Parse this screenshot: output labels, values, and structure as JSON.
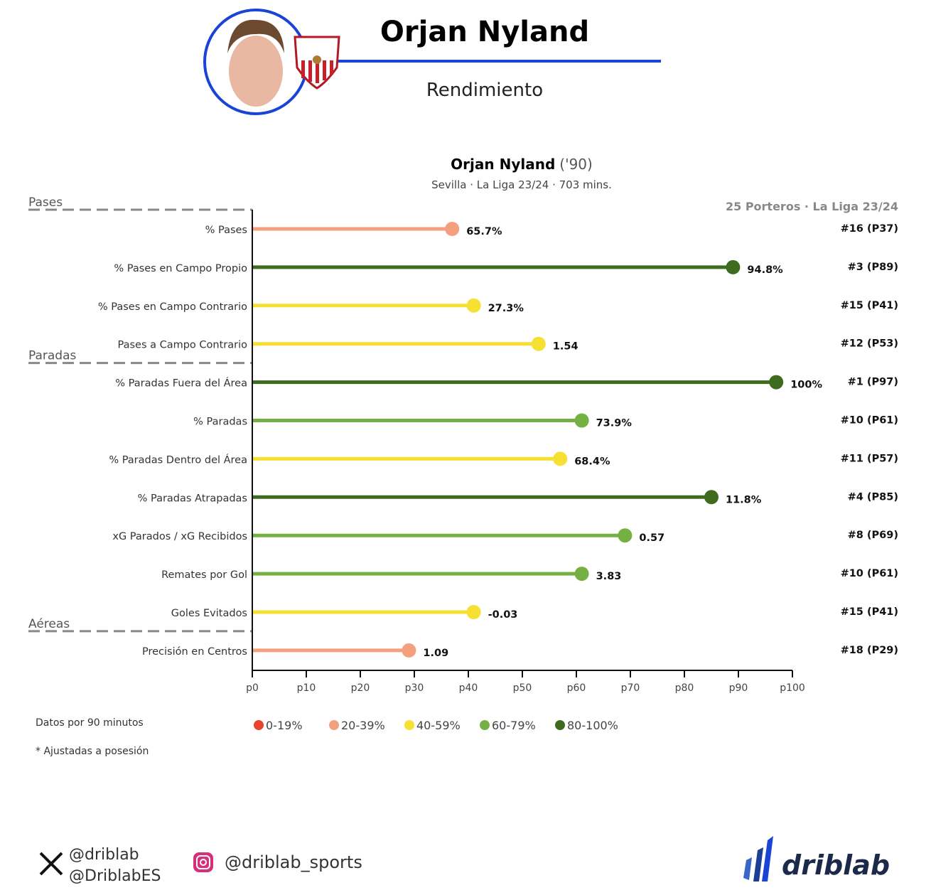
{
  "header": {
    "player_name": "Orjan Nyland",
    "subtitle": "Rendimiento"
  },
  "chart_data": {
    "type": "lollipop",
    "title": "Orjan Nyland",
    "title_suffix": "('90)",
    "subtitle": "Sevilla · La Liga 23/24 · 703 mins.",
    "comparison_label": "25 Porteros · La Liga 23/24",
    "xlim": [
      0,
      100
    ],
    "x_ticks": [
      "p0",
      "p10",
      "p20",
      "p30",
      "p40",
      "p50",
      "p60",
      "p70",
      "p80",
      "p90",
      "p100"
    ],
    "groups": [
      {
        "name": "Pases",
        "start_index": 0
      },
      {
        "name": "Paradas",
        "start_index": 4
      },
      {
        "name": "Aéreas",
        "start_index": 11
      }
    ],
    "metrics": [
      {
        "label": "% Pases",
        "value": "65.7%",
        "percentile": 37,
        "rank": "#16 (P37)"
      },
      {
        "label": "% Pases en Campo Propio",
        "value": "94.8%",
        "percentile": 89,
        "rank": "#3 (P89)"
      },
      {
        "label": "% Pases en Campo Contrario",
        "value": "27.3%",
        "percentile": 41,
        "rank": "#15 (P41)"
      },
      {
        "label": "Pases a Campo Contrario",
        "value": "1.54",
        "percentile": 53,
        "rank": "#12 (P53)"
      },
      {
        "label": "% Paradas Fuera del Área",
        "value": "100%",
        "percentile": 97,
        "rank": "#1 (P97)"
      },
      {
        "label": "% Paradas",
        "value": "73.9%",
        "percentile": 61,
        "rank": "#10 (P61)"
      },
      {
        "label": "% Paradas Dentro del Área",
        "value": "68.4%",
        "percentile": 57,
        "rank": "#11 (P57)"
      },
      {
        "label": "% Paradas Atrapadas",
        "value": "11.8%",
        "percentile": 85,
        "rank": "#4 (P85)"
      },
      {
        "label": "xG Parados / xG Recibidos",
        "value": "0.57",
        "percentile": 69,
        "rank": "#8 (P69)"
      },
      {
        "label": "Remates por Gol",
        "value": "3.83",
        "percentile": 61,
        "rank": "#10 (P61)"
      },
      {
        "label": "Goles Evitados",
        "value": "-0.03",
        "percentile": 41,
        "rank": "#15 (P41)"
      },
      {
        "label": "Precisión en Centros",
        "value": "1.09",
        "percentile": 29,
        "rank": "#18 (P29)"
      }
    ],
    "legend": [
      {
        "label": "0-19%",
        "color": "#e8432e"
      },
      {
        "label": "20-39%",
        "color": "#f4a07e"
      },
      {
        "label": "40-59%",
        "color": "#f6e032"
      },
      {
        "label": "60-79%",
        "color": "#75b043"
      },
      {
        "label": "80-100%",
        "color": "#3e6b1e"
      }
    ]
  },
  "notes": {
    "per90": "Datos por 90 minutos",
    "adjusted": "* Ajustadas a posesión"
  },
  "footer": {
    "x_handle_1": "@driblab",
    "x_handle_2": "@DriblabES",
    "instagram": "@driblab_sports",
    "brand": "driblab"
  },
  "colors": {
    "accent": "#1a44d6"
  }
}
